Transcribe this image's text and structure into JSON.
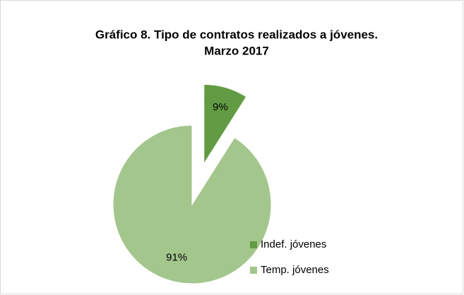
{
  "chart_data": {
    "type": "pie",
    "title": [
      "Gráfico 8. Tipo de contratos realizados a jóvenes.",
      "Marzo 2017"
    ],
    "categories": [
      "Indef. jóvenes",
      "Temp. jóvenes"
    ],
    "values": [
      9,
      91
    ],
    "value_labels": [
      "9%",
      "91%"
    ],
    "colors": [
      "#629b43",
      "#a3c68c"
    ],
    "legend": "right"
  }
}
